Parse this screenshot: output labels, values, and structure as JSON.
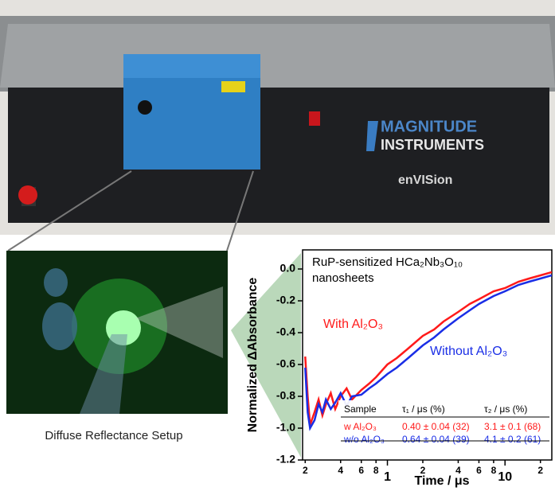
{
  "photo": {
    "brand_line1": "MAGNITUDE",
    "brand_line2": "INSTRUMENTS",
    "model": "enVISion",
    "setup_caption": "Diffuse Reflectance Setup"
  },
  "chart_data": {
    "type": "line",
    "annotations": [
      "RuP-sensitized HCa₂Nb₃O₁₀",
      "nanosheets",
      "With Al₂O₃",
      "Without Al₂O₃"
    ],
    "x_label": "Time / μs",
    "y_label": "Normalized ΔAbsorbance",
    "log_x": true,
    "x": [
      0.2,
      0.21,
      0.22,
      0.24,
      0.26,
      0.28,
      0.3,
      0.33,
      0.36,
      0.4,
      0.45,
      0.5,
      0.6,
      0.7,
      0.8,
      1,
      1.2,
      1.5,
      2,
      2.5,
      3,
      4,
      5,
      6,
      8,
      10,
      13,
      16,
      20,
      25
    ],
    "series": [
      {
        "color": "#ff1a1a",
        "values": [
          -0.55,
          -0.8,
          -0.98,
          -0.9,
          -0.82,
          -0.92,
          -0.85,
          -0.78,
          -0.88,
          -0.8,
          -0.75,
          -0.82,
          -0.76,
          -0.72,
          -0.68,
          -0.6,
          -0.56,
          -0.5,
          -0.42,
          -0.38,
          -0.33,
          -0.27,
          -0.22,
          -0.19,
          -0.14,
          -0.12,
          -0.08,
          -0.06,
          -0.04,
          -0.02
        ]
      },
      {
        "color": "#1a2ee6",
        "values": [
          -0.62,
          -0.9,
          -1.0,
          -0.95,
          -0.85,
          -0.9,
          -0.82,
          -0.88,
          -0.84,
          -0.78,
          -0.86,
          -0.8,
          -0.79,
          -0.75,
          -0.72,
          -0.66,
          -0.62,
          -0.56,
          -0.48,
          -0.43,
          -0.38,
          -0.31,
          -0.26,
          -0.22,
          -0.17,
          -0.14,
          -0.1,
          -0.08,
          -0.06,
          -0.04
        ]
      }
    ],
    "xlim": [
      0.19,
      25
    ],
    "ylim": [
      -1.2,
      0.12
    ],
    "xticks": [
      {
        "value": 0.2,
        "label": "2"
      },
      {
        "value": 0.4,
        "label": "4"
      },
      {
        "value": 0.6,
        "label": "6"
      },
      {
        "value": 0.8,
        "label": "8"
      },
      1,
      2,
      4,
      6,
      8,
      10,
      {
        "value": 20,
        "label": "2"
      }
    ],
    "yticks": [
      {
        "value": 0,
        "label": "0.0"
      },
      -0.2,
      -0.4,
      -0.6,
      -0.8,
      {
        "value": -1,
        "label": "-1.0"
      },
      -1.2
    ],
    "table": {
      "header": [
        "Sample",
        "τ₁ / μs (%)",
        "τ₂ / μs (%)"
      ],
      "rows": [
        [
          "w Al₂O₃",
          "0.40 ± 0.04 (32)",
          "3.1 ± 0.1 (68)"
        ],
        [
          "w/o Al₂O₃",
          "0.64 ± 0.04 (39)",
          "4.1 ± 0.2 (61)"
        ]
      ]
    }
  }
}
